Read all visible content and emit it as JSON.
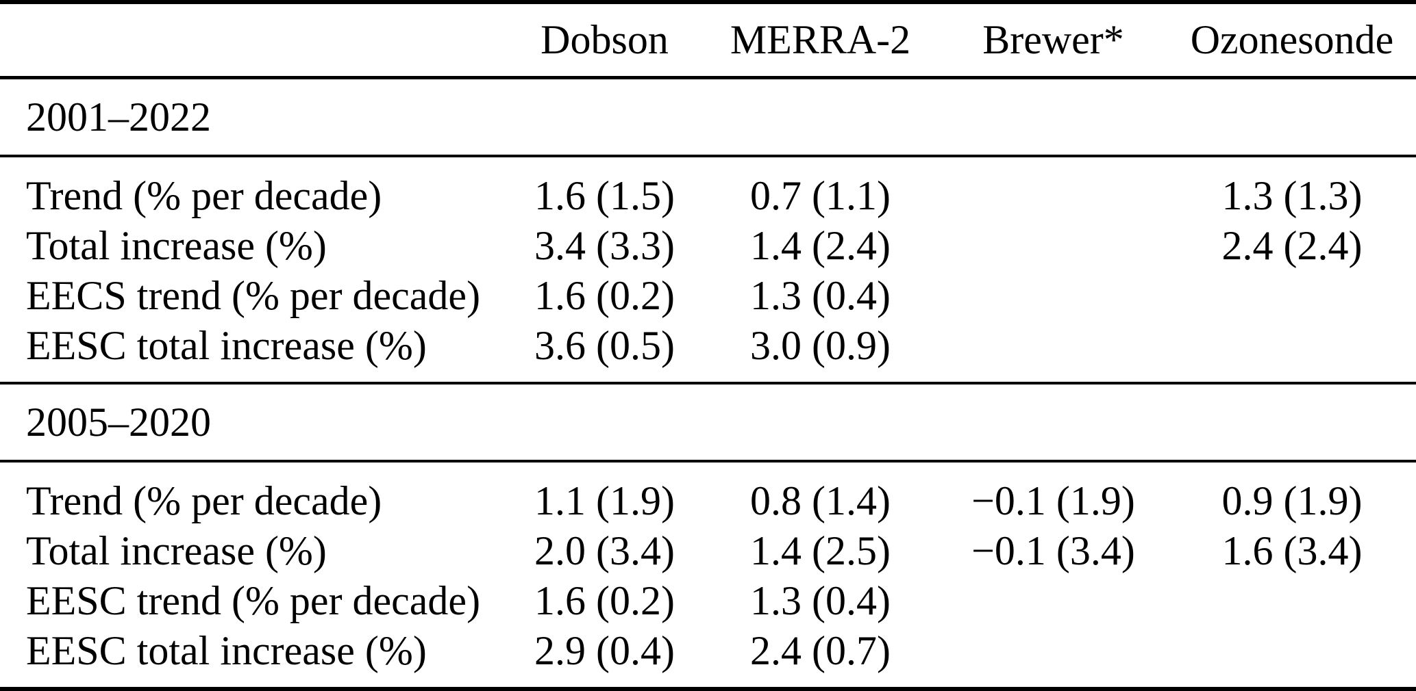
{
  "table": {
    "column_headers": [
      "",
      "Dobson",
      "MERRA-2",
      "Brewer*",
      "Ozonesonde"
    ],
    "sections": [
      {
        "period": "2001–2022",
        "rows": [
          {
            "label": "Trend (% per decade)",
            "values": [
              "1.6 (1.5)",
              "0.7 (1.1)",
              "",
              "1.3 (1.3)"
            ]
          },
          {
            "label": "Total increase (%)",
            "values": [
              "3.4 (3.3)",
              "1.4 (2.4)",
              "",
              "2.4 (2.4)"
            ]
          },
          {
            "label": "EECS trend (% per decade)",
            "values": [
              "1.6 (0.2)",
              "1.3 (0.4)",
              "",
              ""
            ]
          },
          {
            "label": "EESC total increase (%)",
            "values": [
              "3.6 (0.5)",
              "3.0 (0.9)",
              "",
              ""
            ]
          }
        ]
      },
      {
        "period": "2005–2020",
        "rows": [
          {
            "label": "Trend (% per decade)",
            "values": [
              "1.1 (1.9)",
              "0.8 (1.4)",
              "−0.1 (1.9)",
              "0.9 (1.9)"
            ]
          },
          {
            "label": "Total increase (%)",
            "values": [
              "2.0 (3.4)",
              "1.4 (2.5)",
              "−0.1 (3.4)",
              "1.6 (3.4)"
            ]
          },
          {
            "label": "EESC trend (% per decade)",
            "values": [
              "1.6 (0.2)",
              "1.3 (0.4)",
              "",
              ""
            ]
          },
          {
            "label": "EESC total increase (%)",
            "values": [
              "2.9 (0.4)",
              "2.4 (0.7)",
              "",
              ""
            ]
          }
        ]
      }
    ],
    "colors": {
      "text": "#000000",
      "rule": "#000000",
      "background": "#ffffff"
    }
  }
}
